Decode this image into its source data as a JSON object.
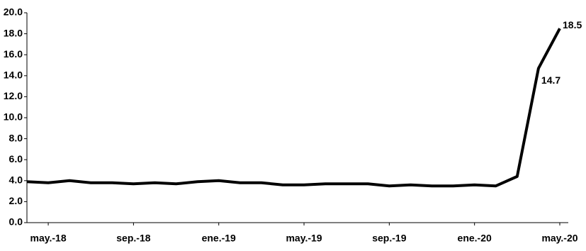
{
  "chart_data": {
    "type": "line",
    "categories": [
      null,
      "may.-18",
      null,
      null,
      null,
      "sep.-18",
      null,
      null,
      null,
      "ene.-19",
      null,
      null,
      null,
      "may.-19",
      null,
      null,
      null,
      "sep.-19",
      null,
      null,
      null,
      "ene.-20",
      null,
      null,
      null,
      "may.-20"
    ],
    "series": [
      {
        "color": "#000000",
        "values": [
          3.9,
          3.8,
          4.0,
          3.8,
          3.8,
          3.7,
          3.8,
          3.7,
          3.9,
          4.0,
          3.8,
          3.8,
          3.6,
          3.6,
          3.7,
          3.7,
          3.7,
          3.5,
          3.6,
          3.5,
          3.5,
          3.6,
          3.5,
          4.4,
          14.7,
          18.5
        ],
        "value_labels": [
          null,
          null,
          null,
          null,
          null,
          null,
          null,
          null,
          null,
          null,
          null,
          null,
          null,
          null,
          null,
          null,
          null,
          null,
          null,
          null,
          null,
          null,
          null,
          null,
          "14.7",
          "18.5"
        ]
      }
    ],
    "ylim": [
      0,
      20
    ],
    "yticks": [
      {
        "value": 0,
        "label": "0.0"
      },
      {
        "value": 2,
        "label": "2.0"
      },
      {
        "value": 4,
        "label": "4.0"
      },
      {
        "value": 6,
        "label": "6.0"
      },
      {
        "value": 8,
        "label": "8.0"
      },
      {
        "value": 10,
        "label": "10.0"
      },
      {
        "value": 12,
        "label": "12.0"
      },
      {
        "value": 14,
        "label": "14.0"
      },
      {
        "value": 16,
        "label": "16.0"
      },
      {
        "value": 18,
        "label": "18.0"
      },
      {
        "value": 20,
        "label": "20.0"
      }
    ],
    "grid": false
  }
}
